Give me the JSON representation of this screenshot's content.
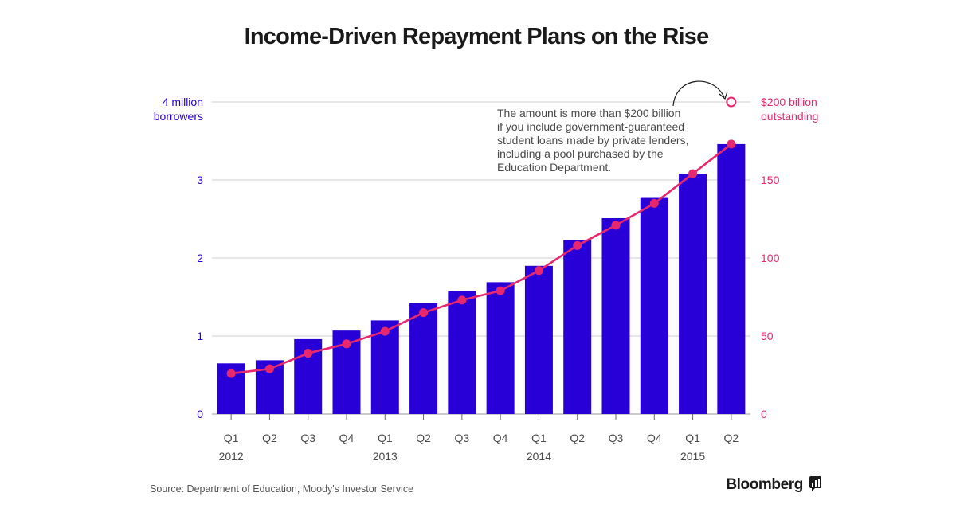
{
  "chart_data": {
    "type": "bar",
    "title": "Income-Driven Repayment Plans on the Rise",
    "categories": [
      "Q1",
      "Q2",
      "Q3",
      "Q4",
      "Q1",
      "Q2",
      "Q3",
      "Q4",
      "Q1",
      "Q2",
      "Q3",
      "Q4",
      "Q1",
      "Q2"
    ],
    "year_labels": [
      "2012",
      "",
      "",
      "",
      "2013",
      "",
      "",
      "",
      "2014",
      "",
      "",
      "",
      "2015",
      ""
    ],
    "series": [
      {
        "name": "borrowers",
        "type": "bar",
        "axis": "left",
        "unit": "million",
        "color": "#2800d7",
        "values": [
          0.65,
          0.69,
          0.96,
          1.07,
          1.2,
          1.42,
          1.58,
          1.69,
          1.9,
          2.23,
          2.51,
          2.77,
          3.08,
          3.46
        ]
      },
      {
        "name": "outstanding",
        "type": "line",
        "axis": "right",
        "unit": "billion $",
        "color": "#e8286e",
        "values": [
          26,
          29,
          39,
          45,
          53,
          65,
          73,
          79,
          92,
          108,
          121,
          135,
          154,
          173
        ]
      }
    ],
    "annotation_point": {
      "category_index": 13,
      "value": 200,
      "axis": "right"
    },
    "y_left": {
      "range": [
        0,
        4
      ],
      "ticks": [
        0,
        1,
        2,
        3
      ],
      "tick_labels": [
        "0",
        "1",
        "2",
        "3"
      ],
      "top_label_line1": "4 million",
      "top_label_line2": "borrowers"
    },
    "y_right": {
      "range": [
        0,
        200
      ],
      "ticks": [
        0,
        50,
        100,
        150
      ],
      "tick_labels": [
        "0",
        "50",
        "100",
        "150"
      ],
      "top_label_line1": "$200 billion",
      "top_label_line2": "outstanding"
    },
    "annotation": [
      "The amount is more than $200 billion",
      "if you include government-guaranteed",
      "student loans made by private lenders,",
      "including a pool purchased by the",
      "Education Department."
    ],
    "source": "Source: Department of Education, Moody's Investor Service",
    "brand": "Bloomberg",
    "grid": true,
    "colors": {
      "bar": "#2800d7",
      "line": "#e8286e",
      "grid": "#cfcfcf",
      "axis": "#555555"
    }
  }
}
